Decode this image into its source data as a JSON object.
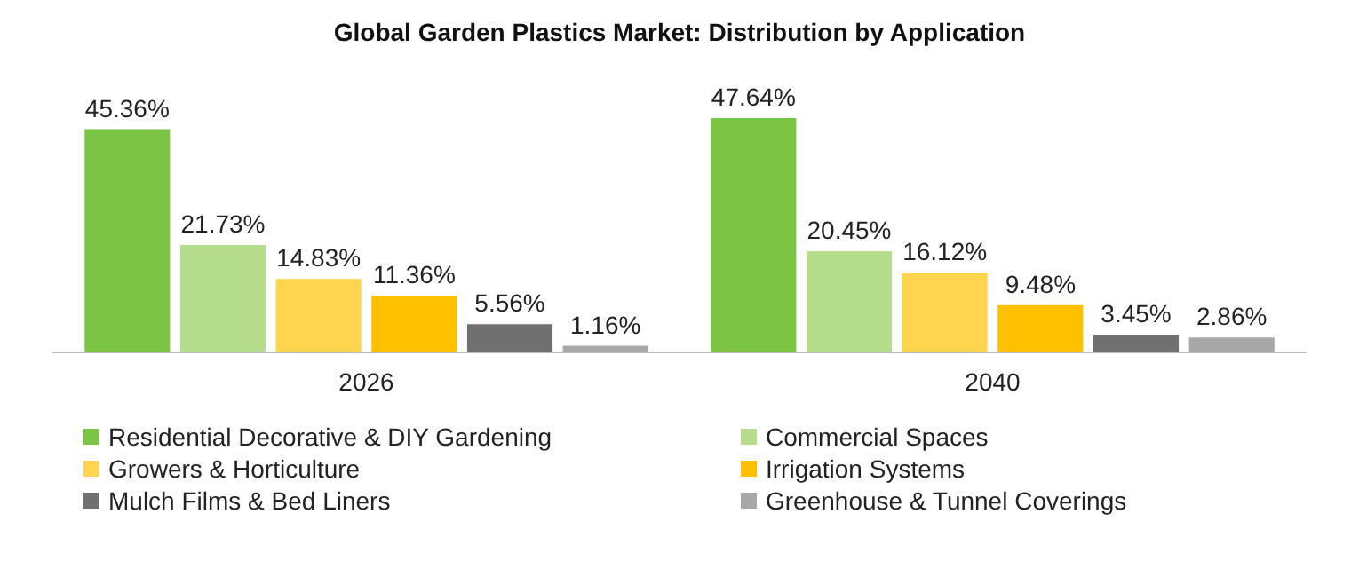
{
  "chart_data": {
    "type": "bar",
    "title": "Global Garden Plastics Market: Distribution by Application",
    "categories": [
      "2026",
      "2040"
    ],
    "series": [
      {
        "name": "Residential Decorative & DIY Gardening",
        "color": "#7cc444",
        "values": [
          45.36,
          47.64
        ],
        "value_labels": [
          "45.36%",
          "47.64%"
        ]
      },
      {
        "name": "Commercial Spaces",
        "color": "#b5dd8c",
        "values": [
          21.73,
          20.45
        ],
        "value_labels": [
          "21.73%",
          "20.45%"
        ]
      },
      {
        "name": "Growers & Horticulture",
        "color": "#ffd550",
        "values": [
          14.83,
          16.12
        ],
        "value_labels": [
          "14.83%",
          "16.12%"
        ]
      },
      {
        "name": "Irrigation Systems",
        "color": "#ffc000",
        "values": [
          11.36,
          9.48
        ],
        "value_labels": [
          "11.36%",
          "9.48%"
        ]
      },
      {
        "name": "Mulch Films & Bed Liners",
        "color": "#707070",
        "values": [
          5.56,
          3.45
        ],
        "value_labels": [
          "5.56%",
          "3.45%"
        ]
      },
      {
        "name": "Greenhouse & Tunnel Coverings",
        "color": "#a8a8a8",
        "values": [
          1.16,
          2.86
        ],
        "value_labels": [
          "1.16%",
          "2.86%"
        ]
      }
    ],
    "legend": "bottom",
    "grid": false
  }
}
